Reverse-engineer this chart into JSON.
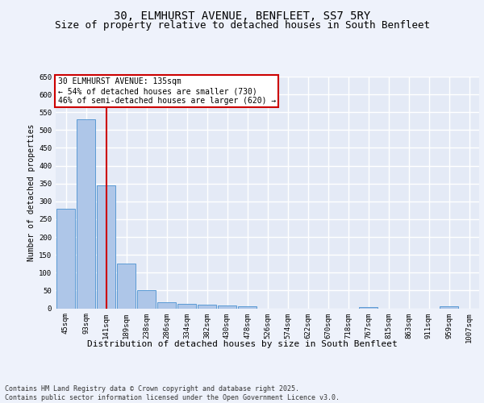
{
  "title1": "30, ELMHURST AVENUE, BENFLEET, SS7 5RY",
  "title2": "Size of property relative to detached houses in South Benfleet",
  "xlabel": "Distribution of detached houses by size in South Benfleet",
  "ylabel": "Number of detached properties",
  "categories": [
    "45sqm",
    "93sqm",
    "141sqm",
    "189sqm",
    "238sqm",
    "286sqm",
    "334sqm",
    "382sqm",
    "430sqm",
    "478sqm",
    "526sqm",
    "574sqm",
    "622sqm",
    "670sqm",
    "718sqm",
    "767sqm",
    "815sqm",
    "863sqm",
    "911sqm",
    "959sqm",
    "1007sqm"
  ],
  "values": [
    280,
    530,
    345,
    125,
    50,
    17,
    12,
    10,
    7,
    5,
    0,
    0,
    0,
    0,
    0,
    4,
    0,
    0,
    0,
    5,
    0
  ],
  "bar_color": "#aec6e8",
  "bar_edge_color": "#5b9bd5",
  "red_line_index": 2,
  "ylim": [
    0,
    650
  ],
  "yticks": [
    0,
    50,
    100,
    150,
    200,
    250,
    300,
    350,
    400,
    450,
    500,
    550,
    600,
    650
  ],
  "annotation_text": "30 ELMHURST AVENUE: 135sqm\n← 54% of detached houses are smaller (730)\n46% of semi-detached houses are larger (620) →",
  "annotation_box_color": "#ffffff",
  "annotation_box_edge": "#cc0000",
  "footer_text": "Contains HM Land Registry data © Crown copyright and database right 2025.\nContains public sector information licensed under the Open Government Licence v3.0.",
  "background_color": "#eef2fb",
  "plot_bg_color": "#e4eaf6",
  "grid_color": "#ffffff",
  "title1_fontsize": 10,
  "title2_fontsize": 9,
  "xlabel_fontsize": 8,
  "ylabel_fontsize": 7,
  "tick_fontsize": 6.5,
  "footer_fontsize": 6,
  "annot_fontsize": 7
}
